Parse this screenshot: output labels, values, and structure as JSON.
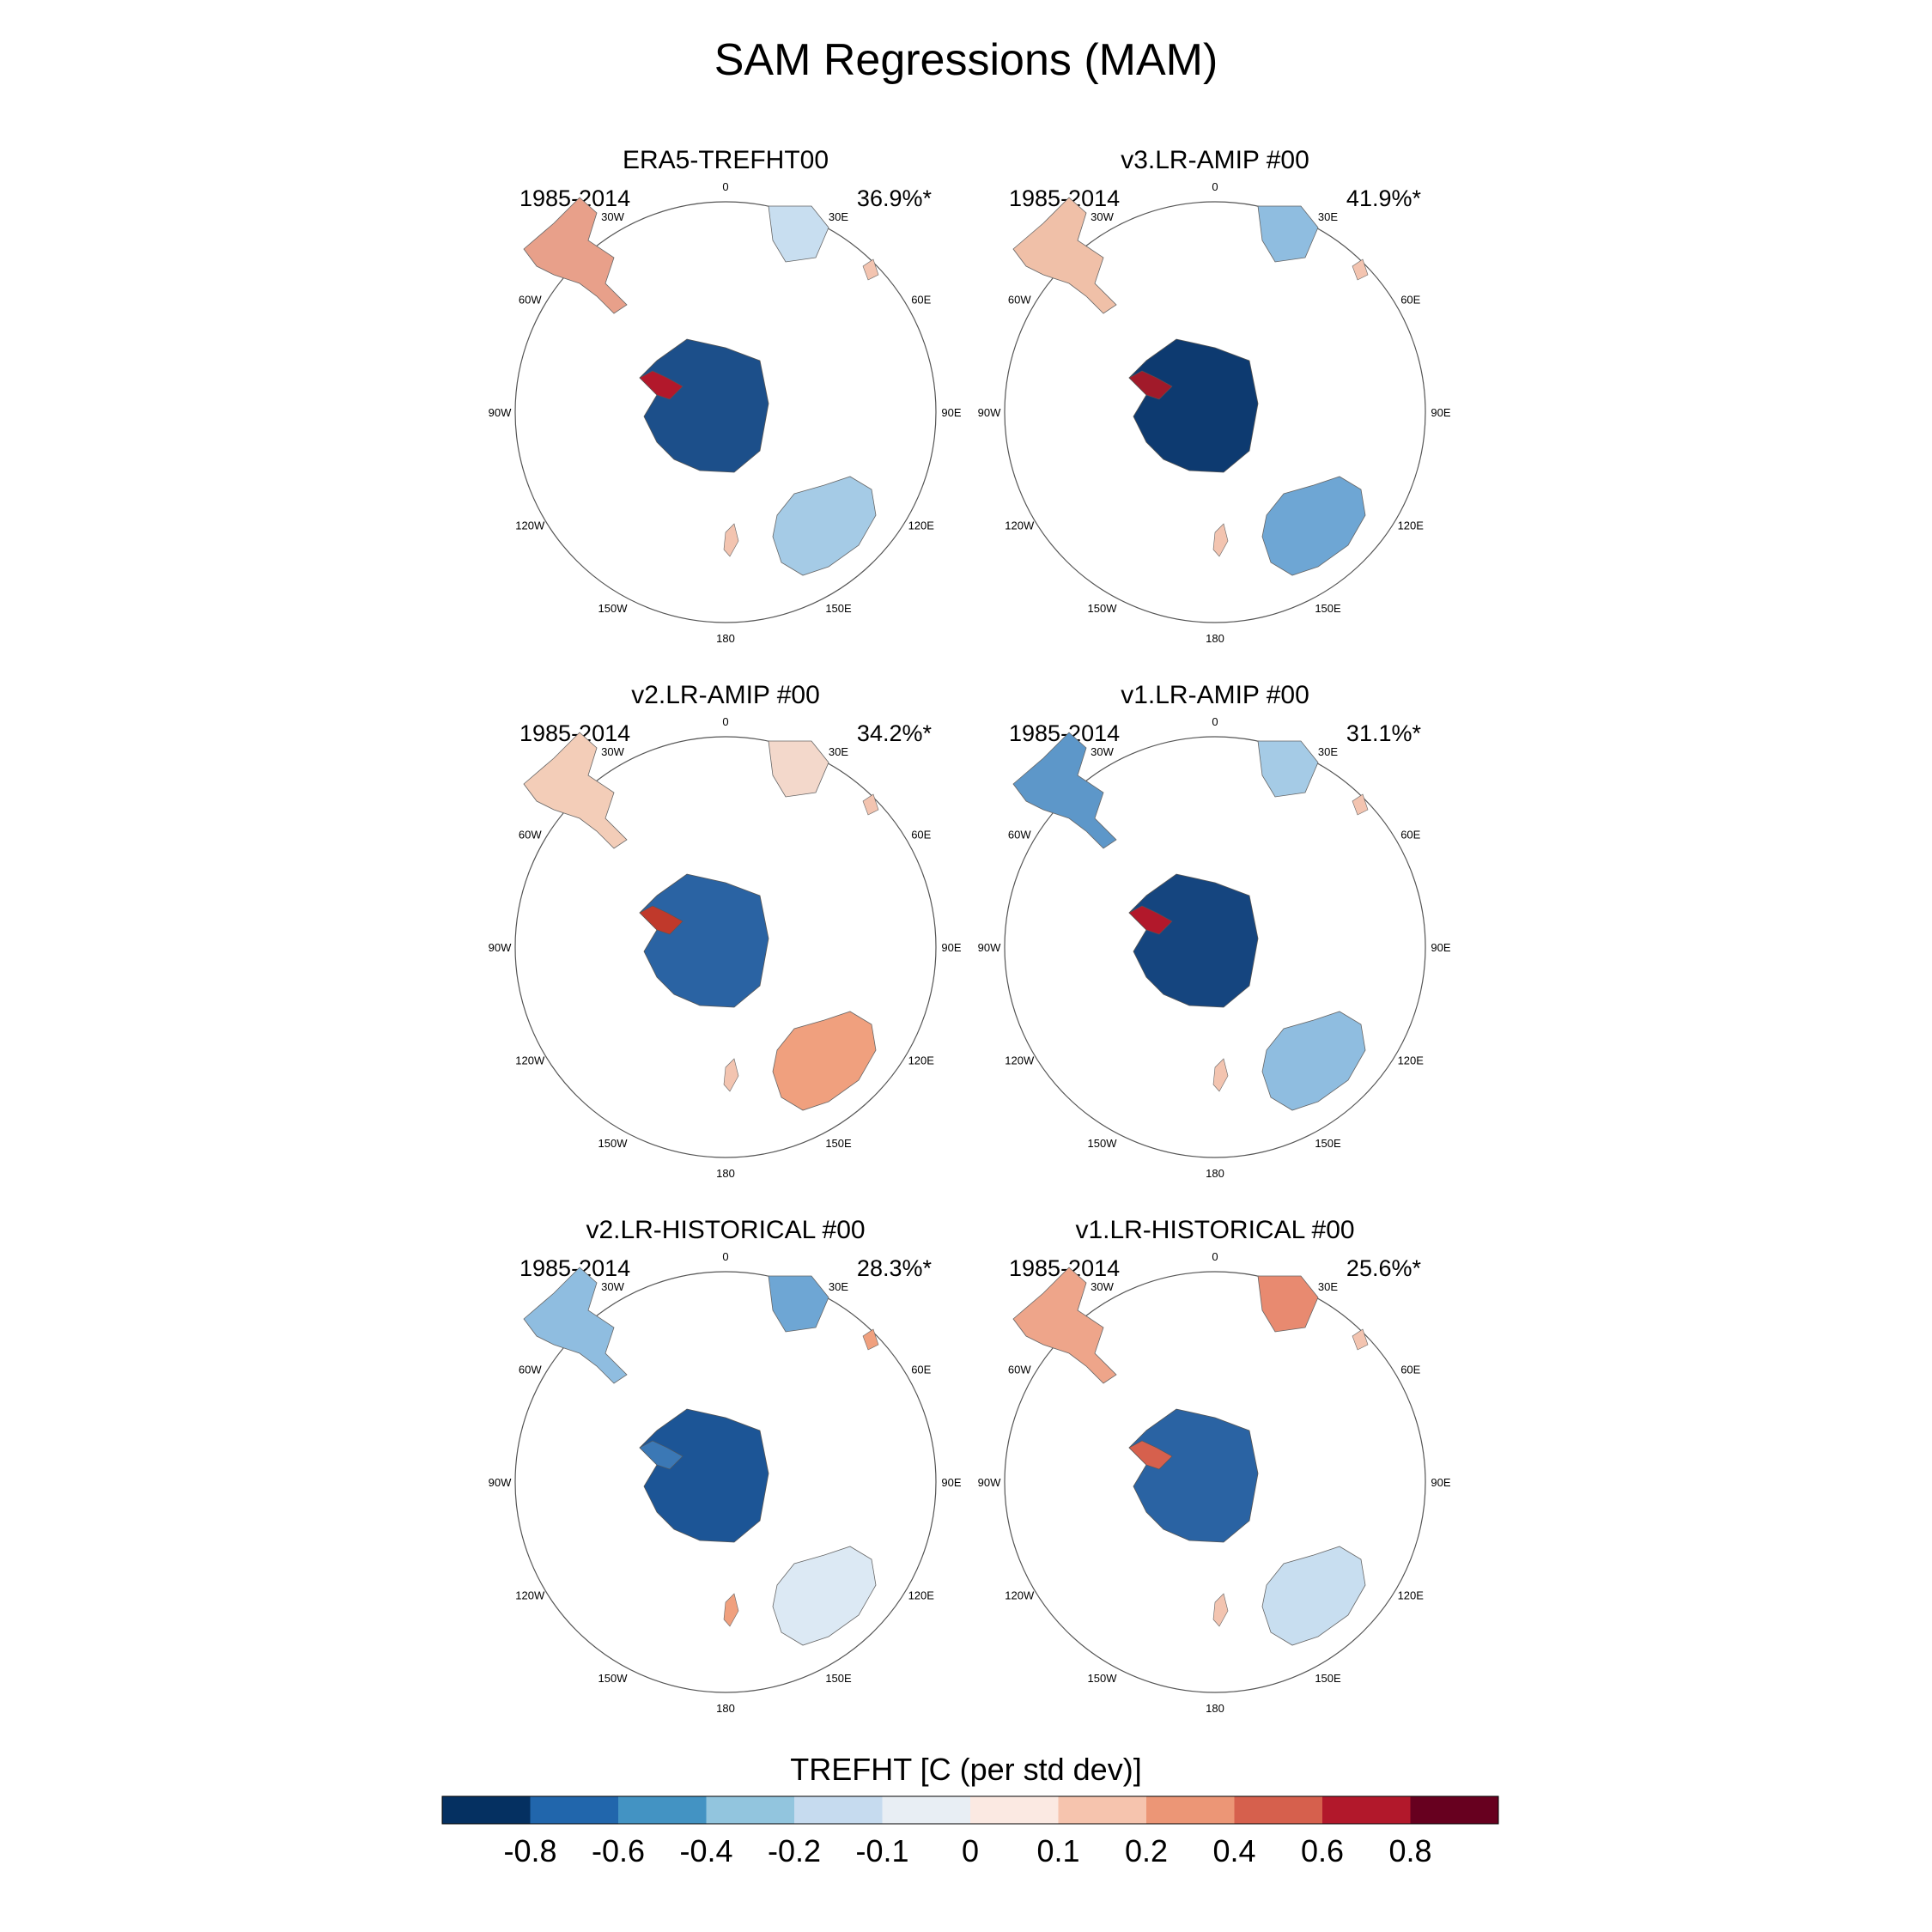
{
  "title": "SAM Regressions (MAM)",
  "panels": [
    {
      "title": "ERA5-TREFHT00",
      "years": "1985-2014",
      "percent": "36.9%*",
      "antarctica": "#1c4f8a",
      "peninsula": "#b2182b",
      "samerica": "#e8a08a",
      "africa": "#c8def0",
      "australia": "#a5cbe6",
      "nz": "#f3c4b0"
    },
    {
      "title": "v3.LR-AMIP  #00",
      "years": "1985-2014",
      "percent": "41.9%*",
      "antarctica": "#0d3a70",
      "peninsula": "#a11a2a",
      "samerica": "#f0c0a8",
      "africa": "#8fbde0",
      "australia": "#6ea6d4",
      "nz": "#f3c4b0"
    },
    {
      "title": "v2.LR-AMIP  #00",
      "years": "1985-2014",
      "percent": "34.2%*",
      "antarctica": "#2a63a3",
      "peninsula": "#c0392b",
      "samerica": "#f3cdb8",
      "africa": "#f3d8cb",
      "australia": "#f0a07e",
      "nz": "#f3c4b0"
    },
    {
      "title": "v1.LR-AMIP  #00",
      "years": "1985-2014",
      "percent": "31.1%*",
      "antarctica": "#15457f",
      "peninsula": "#b2182b",
      "samerica": "#5d97c9",
      "africa": "#a5cbe6",
      "australia": "#8fbde0",
      "nz": "#f3c4b0"
    },
    {
      "title": "v2.LR-HISTORICAL  #00",
      "years": "1985-2014",
      "percent": "28.3%*",
      "antarctica": "#1c5596",
      "peninsula": "#3b78b5",
      "samerica": "#8fbde0",
      "africa": "#6ea6d4",
      "australia": "#dce9f4",
      "nz": "#f0a07e"
    },
    {
      "title": "v1.LR-HISTORICAL  #00",
      "years": "1985-2014",
      "percent": "25.6%*",
      "antarctica": "#2a63a3",
      "peninsula": "#d6604d",
      "samerica": "#eea58a",
      "africa": "#e88a70",
      "australia": "#c8def0",
      "nz": "#f3c4b0"
    }
  ],
  "longitude_labels": [
    "0",
    "30E",
    "60E",
    "90E",
    "120E",
    "150E",
    "180",
    "150W",
    "120W",
    "90W",
    "60W",
    "30W"
  ],
  "colorbar": {
    "title": "TREFHT [C (per std dev)]",
    "colors": [
      "#053061",
      "#2166ac",
      "#4393c3",
      "#92c5de",
      "#c6dbef",
      "#e8eef4",
      "#fbe9e2",
      "#f6c4ae",
      "#ec9676",
      "#d6604d",
      "#b2182b",
      "#67001f"
    ],
    "labels": [
      "-0.8",
      "-0.6",
      "-0.4",
      "-0.2",
      "-0.1",
      "0",
      "0.1",
      "0.2",
      "0.4",
      "0.6",
      "0.8"
    ]
  }
}
